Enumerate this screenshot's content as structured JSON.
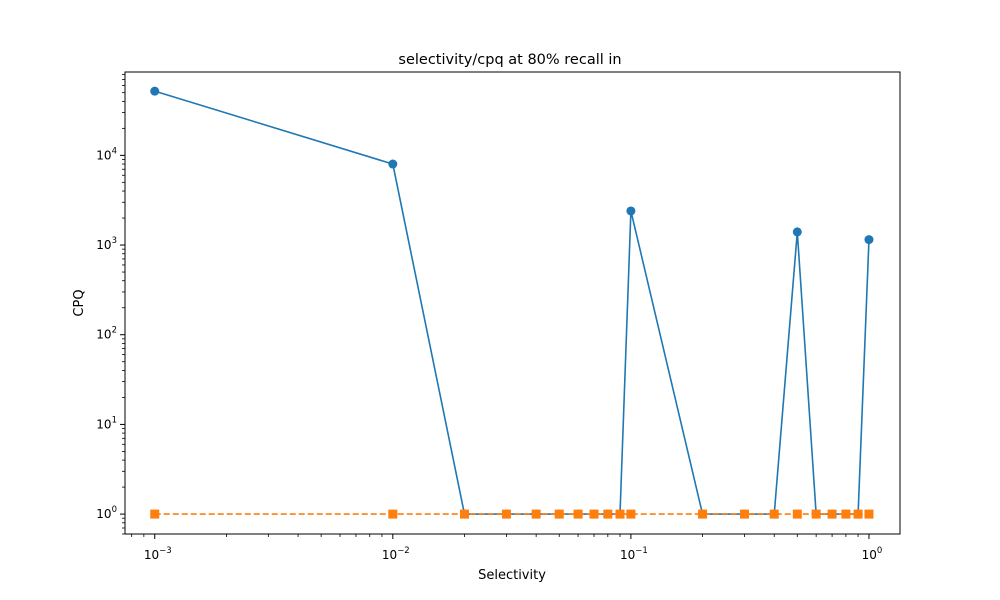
{
  "chart_data": {
    "type": "line",
    "title": "selectivity/cpq at 80% recall in",
    "xlabel": "Selectivity",
    "ylabel": "CPQ",
    "xscale": "log",
    "yscale": "log",
    "xlim": [
      0.00075,
      1.35
    ],
    "ylim": [
      0.6,
      85000
    ],
    "grid": false,
    "x_ticks": [
      {
        "value": 0.001,
        "base": "10",
        "exp": "−3"
      },
      {
        "value": 0.01,
        "base": "10",
        "exp": "−2"
      },
      {
        "value": 0.1,
        "base": "10",
        "exp": "−1"
      },
      {
        "value": 1,
        "base": "10",
        "exp": "0"
      }
    ],
    "y_ticks": [
      {
        "value": 1,
        "base": "10",
        "exp": "0"
      },
      {
        "value": 10,
        "base": "10",
        "exp": "1"
      },
      {
        "value": 100,
        "base": "10",
        "exp": "2"
      },
      {
        "value": 1000,
        "base": "10",
        "exp": "3"
      },
      {
        "value": 10000,
        "base": "10",
        "exp": "4"
      }
    ],
    "series": [
      {
        "color": "#1f77b4",
        "marker": "circle",
        "linestyle": "solid",
        "x": [
          0.001,
          0.01,
          0.02,
          0.03,
          0.04,
          0.05,
          0.06,
          0.07,
          0.08,
          0.09,
          0.1,
          0.2,
          0.3,
          0.4,
          0.5,
          0.6,
          0.7,
          0.8,
          0.9,
          1.0
        ],
        "values": [
          52000,
          8000,
          1,
          1,
          1,
          1,
          1,
          1,
          1,
          1,
          2400,
          1,
          1,
          1,
          1400,
          1,
          1,
          1,
          1,
          1150
        ]
      },
      {
        "color": "#ff7f0e",
        "marker": "square",
        "linestyle": "dashed",
        "x": [
          0.001,
          0.01,
          0.02,
          0.03,
          0.04,
          0.05,
          0.06,
          0.07,
          0.08,
          0.09,
          0.1,
          0.2,
          0.3,
          0.4,
          0.5,
          0.6,
          0.7,
          0.8,
          0.9,
          1.0
        ],
        "values": [
          1,
          1,
          1,
          1,
          1,
          1,
          1,
          1,
          1,
          1,
          1,
          1,
          1,
          1,
          1,
          1,
          1,
          1,
          1,
          1
        ]
      }
    ]
  }
}
